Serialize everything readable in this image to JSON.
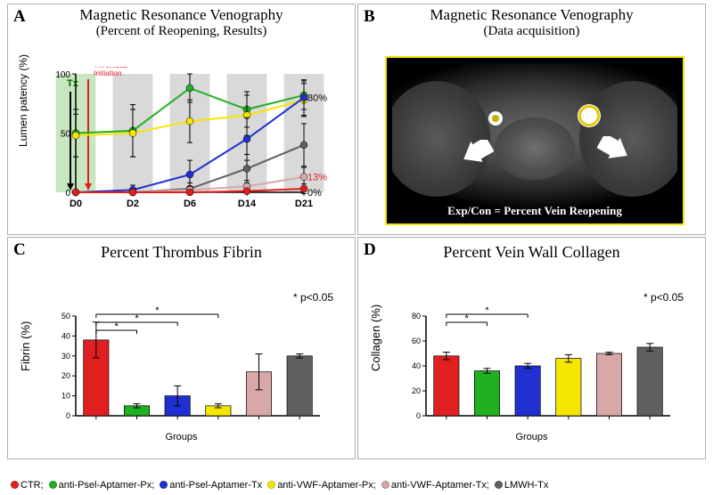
{
  "colors": {
    "CTR": "#e02020",
    "aPselPx": "#20b020",
    "aPselTx": "#2030d0",
    "aVWFPx": "#f5e600",
    "aVWFTx": "#d8a8a8",
    "LMWH": "#606060",
    "grid": "#e8e8e8",
    "axis": "#000000",
    "bg_band": "#d9d9d9",
    "bg_tx": "#c8e6c0",
    "red_text": "#e02020"
  },
  "legend": [
    {
      "key": "CTR",
      "label": "CTR;"
    },
    {
      "key": "aPselPx",
      "label": "anti-Psel-Aptamer-Px;"
    },
    {
      "key": "aPselTx",
      "label": "anti-Psel-Aptamer-Tx"
    },
    {
      "key": "aVWFPx",
      "label": "anti-VWF-Aptamer-Px;"
    },
    {
      "key": "aVWFTx",
      "label": "anti-VWF-Aptamer-Tx;"
    },
    {
      "key": "LMWH",
      "label": "LMWH-Tx"
    }
  ],
  "panelA": {
    "letter": "A",
    "title": "Magnetic Resonance Venography",
    "subtitle": "(Percent of Reopening, Results)",
    "yaxis": "Lumen patency  (%)",
    "ylim": [
      0,
      100
    ],
    "ytick_step": 50,
    "xticks": [
      "D0",
      "D2",
      "D6",
      "D14",
      "D21"
    ],
    "tx_band_label": "Tx",
    "surgery_label": "Surgery\nThrombus\nInitiation",
    "right_labels": [
      {
        "text": "80%",
        "y": 80,
        "color": "#000000"
      },
      {
        "text": "13%",
        "y": 13,
        "color": "#e02020"
      },
      {
        "text": "0%",
        "y": 0,
        "color": "#000000"
      }
    ],
    "series": [
      {
        "key": "aPselPx",
        "values": [
          50,
          52,
          88,
          70,
          82
        ],
        "err": [
          20,
          22,
          12,
          15,
          12
        ]
      },
      {
        "key": "aVWFPx",
        "values": [
          48,
          50,
          60,
          65,
          78
        ],
        "err": [
          18,
          20,
          18,
          17,
          14
        ]
      },
      {
        "key": "aPselTx",
        "values": [
          0,
          2,
          15,
          45,
          80
        ],
        "err": [
          0,
          4,
          12,
          18,
          15
        ]
      },
      {
        "key": "LMWH",
        "values": [
          0,
          0,
          3,
          20,
          40
        ],
        "err": [
          0,
          0,
          5,
          12,
          18
        ]
      },
      {
        "key": "aVWFTx",
        "values": [
          0,
          0,
          2,
          5,
          13
        ],
        "err": [
          0,
          0,
          3,
          5,
          8
        ]
      },
      {
        "key": "CTR",
        "values": [
          0,
          0,
          0,
          1,
          3
        ],
        "err": [
          0,
          0,
          0,
          2,
          4
        ]
      }
    ]
  },
  "panelB": {
    "letter": "B",
    "title": "Magnetic Resonance Venography",
    "subtitle": "(Data acquisition)",
    "caption": "Exp/Con = Percent Vein Reopening"
  },
  "panelC": {
    "letter": "C",
    "title": "Percent Thrombus Fibrin",
    "yaxis": "Fibrin (%)",
    "xaxis": "Groups",
    "ylim": [
      0,
      50
    ],
    "ytick_step": 10,
    "sig": "*  p<0.05",
    "bars": [
      {
        "key": "CTR",
        "value": 38,
        "err": 9
      },
      {
        "key": "aPselPx",
        "value": 5,
        "err": 1
      },
      {
        "key": "aPselTx",
        "value": 10,
        "err": 5
      },
      {
        "key": "aVWFPx",
        "value": 5,
        "err": 1
      },
      {
        "key": "aVWFTx",
        "value": 22,
        "err": 9
      },
      {
        "key": "LMWH",
        "value": 30,
        "err": 1
      }
    ],
    "sig_pairs": [
      [
        0,
        1
      ],
      [
        0,
        2
      ],
      [
        0,
        3
      ]
    ]
  },
  "panelD": {
    "letter": "D",
    "title": "Percent Vein Wall Collagen",
    "yaxis": "Collagen (%)",
    "xaxis": "Groups",
    "ylim": [
      0,
      80
    ],
    "ytick_step": 20,
    "sig": "*  p<0.05",
    "bars": [
      {
        "key": "CTR",
        "value": 48,
        "err": 3
      },
      {
        "key": "aPselPx",
        "value": 36,
        "err": 2
      },
      {
        "key": "aPselTx",
        "value": 40,
        "err": 2
      },
      {
        "key": "aVWFPx",
        "value": 46,
        "err": 3
      },
      {
        "key": "aVWFTx",
        "value": 50,
        "err": 1
      },
      {
        "key": "LMWH",
        "value": 55,
        "err": 3
      }
    ],
    "sig_pairs": [
      [
        0,
        1
      ],
      [
        0,
        2
      ]
    ]
  }
}
